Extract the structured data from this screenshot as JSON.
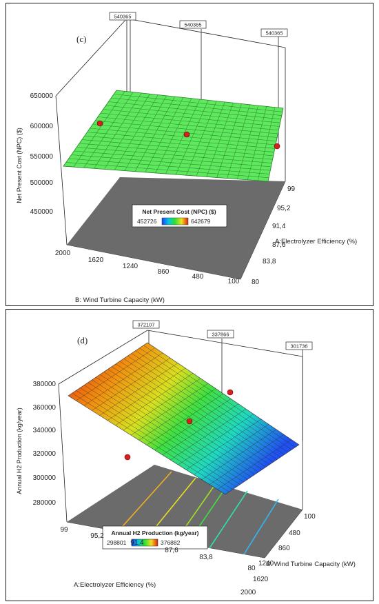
{
  "chart_data": [
    {
      "type": "surface3d",
      "panel_label": "(c)",
      "zlabel": "Net Present Cost (NPC) ($)",
      "xlabel": "A:Electrolyzer Efficiency (%)",
      "ylabel": "B: Wind Turbine Capacity (kW)",
      "z_ticks": [
        "450000",
        "500000",
        "550000",
        "600000",
        "650000"
      ],
      "x_ticks": [
        "80",
        "83,8",
        "87,6",
        "91,4",
        "95,2",
        "99"
      ],
      "y_ticks": [
        "100",
        "480",
        "860",
        "1240",
        "1620",
        "2000"
      ],
      "zlim": [
        450000,
        650000
      ],
      "xlim": [
        80,
        99
      ],
      "ylim": [
        100,
        2000
      ],
      "design_point_labels": [
        "540365",
        "540365",
        "540365"
      ],
      "legend_title": "Net Present Cost (NPC) ($)",
      "legend_min": "452726",
      "legend_max": "642679",
      "surface_color": "#5ee85e",
      "point_color": "#d42020",
      "floor_color": "#6b6b6b"
    },
    {
      "type": "surface3d",
      "panel_label": "(d)",
      "zlabel": "Annual H2 Production (kg/year)",
      "xlabel": "A:Electrolyzer Efficiency (%)",
      "ylabel": "B: Wind Turbine Capacity (kW)",
      "z_ticks": [
        "280000",
        "300000",
        "320000",
        "340000",
        "360000",
        "380000"
      ],
      "x_ticks": [
        "99",
        "95,2",
        "91,4",
        "87,6",
        "83,8",
        "80"
      ],
      "y_ticks": [
        "100",
        "480",
        "860",
        "1240",
        "1620",
        "2000"
      ],
      "zlim": [
        280000,
        380000
      ],
      "xlim": [
        80,
        99
      ],
      "ylim": [
        100,
        2000
      ],
      "design_point_labels": [
        "372107",
        "337866",
        "301736"
      ],
      "legend_title": "Annual H2 Production (kg/year)",
      "legend_min": "298801",
      "legend_max": "376882",
      "point_color": "#d42020",
      "floor_color": "#6b6b6b"
    }
  ]
}
